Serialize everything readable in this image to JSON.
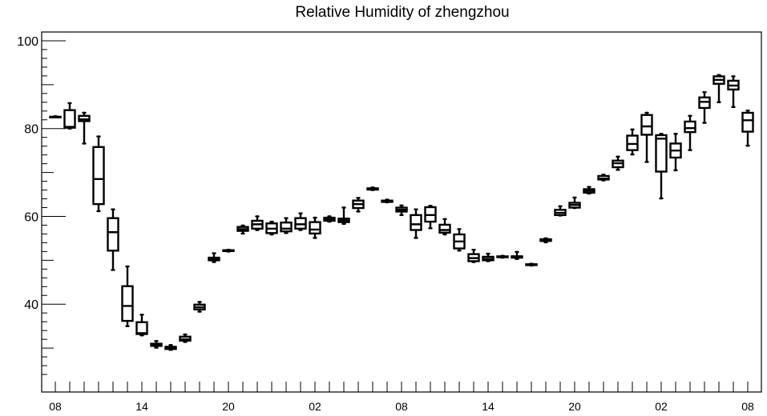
{
  "chart_data": {
    "type": "boxplot",
    "title": "Relative Humidity of zhengzhou",
    "xlabel": "",
    "ylabel": "",
    "ylim": [
      20,
      102
    ],
    "grid": false,
    "legend": "none",
    "colors": {
      "box": "#000000",
      "background": "#ffffff"
    },
    "x_tick_labels": [
      "08",
      "14",
      "20",
      "02",
      "08",
      "14",
      "20",
      "02",
      "08"
    ],
    "x_tick_label_hours": [
      0,
      6,
      12,
      18,
      24,
      30,
      36,
      42,
      48
    ],
    "y_tick_labels": [
      "40",
      "60",
      "80",
      "100"
    ],
    "y_ticks": [
      40,
      60,
      80,
      100
    ],
    "boxes": [
      {
        "hour": 0,
        "min": 82.6,
        "q1": 82.6,
        "median": 82.6,
        "q3": 82.7,
        "max": 82.8
      },
      {
        "hour": 1,
        "min": 80.0,
        "q1": 80.2,
        "median": 80.4,
        "q3": 84.2,
        "max": 85.8
      },
      {
        "hour": 2,
        "min": 76.6,
        "q1": 81.7,
        "median": 82.1,
        "q3": 82.9,
        "max": 83.6
      },
      {
        "hour": 3,
        "min": 61.2,
        "q1": 62.8,
        "median": 68.5,
        "q3": 75.8,
        "max": 78.2
      },
      {
        "hour": 4,
        "min": 47.8,
        "q1": 52.2,
        "median": 56.4,
        "q3": 59.6,
        "max": 61.6
      },
      {
        "hour": 5,
        "min": 35.0,
        "q1": 36.2,
        "median": 39.6,
        "q3": 44.1,
        "max": 48.6
      },
      {
        "hour": 6,
        "min": 32.9,
        "q1": 33.2,
        "median": 33.4,
        "q3": 35.9,
        "max": 37.6
      },
      {
        "hour": 7,
        "min": 30.1,
        "q1": 30.5,
        "median": 30.7,
        "q3": 31.0,
        "max": 31.6
      },
      {
        "hour": 8,
        "min": 29.6,
        "q1": 29.8,
        "median": 29.9,
        "q3": 30.3,
        "max": 30.7
      },
      {
        "hour": 9,
        "min": 31.4,
        "q1": 31.7,
        "median": 32.0,
        "q3": 32.6,
        "max": 33.1
      },
      {
        "hour": 10,
        "min": 38.3,
        "q1": 38.8,
        "median": 39.3,
        "q3": 39.9,
        "max": 40.5
      },
      {
        "hour": 11,
        "min": 49.6,
        "q1": 50.0,
        "median": 50.3,
        "q3": 50.6,
        "max": 51.6
      },
      {
        "hour": 12,
        "min": 52.0,
        "q1": 52.1,
        "median": 52.2,
        "q3": 52.3,
        "max": 52.4
      },
      {
        "hour": 13,
        "min": 56.1,
        "q1": 56.7,
        "median": 57.1,
        "q3": 57.6,
        "max": 57.9
      },
      {
        "hour": 14,
        "min": 56.9,
        "q1": 57.2,
        "median": 58.2,
        "q3": 59.0,
        "max": 60.0
      },
      {
        "hour": 15,
        "min": 55.9,
        "q1": 56.2,
        "median": 57.2,
        "q3": 58.4,
        "max": 58.8
      },
      {
        "hour": 16,
        "min": 56.2,
        "q1": 56.6,
        "median": 57.2,
        "q3": 58.6,
        "max": 59.6
      },
      {
        "hour": 17,
        "min": 56.9,
        "q1": 57.2,
        "median": 58.2,
        "q3": 59.6,
        "max": 60.7
      },
      {
        "hour": 18,
        "min": 55.1,
        "q1": 56.1,
        "median": 57.0,
        "q3": 58.7,
        "max": 59.7
      },
      {
        "hour": 19,
        "min": 58.8,
        "q1": 59.0,
        "median": 59.3,
        "q3": 59.7,
        "max": 60.0
      },
      {
        "hour": 20,
        "min": 58.3,
        "q1": 58.7,
        "median": 59.1,
        "q3": 59.5,
        "max": 62.0
      },
      {
        "hour": 21,
        "min": 61.1,
        "q1": 61.9,
        "median": 62.8,
        "q3": 63.6,
        "max": 64.2
      },
      {
        "hour": 22,
        "min": 66.0,
        "q1": 66.1,
        "median": 66.2,
        "q3": 66.4,
        "max": 66.6
      },
      {
        "hour": 23,
        "min": 63.2,
        "q1": 63.3,
        "median": 63.5,
        "q3": 63.6,
        "max": 63.8
      },
      {
        "hour": 24,
        "min": 60.3,
        "q1": 61.1,
        "median": 61.5,
        "q3": 62.0,
        "max": 62.5
      },
      {
        "hour": 25,
        "min": 55.1,
        "q1": 56.9,
        "median": 58.2,
        "q3": 60.3,
        "max": 61.6
      },
      {
        "hour": 26,
        "min": 57.3,
        "q1": 58.8,
        "median": 60.3,
        "q3": 62.1,
        "max": 62.4
      },
      {
        "hour": 27,
        "min": 55.9,
        "q1": 56.3,
        "median": 56.9,
        "q3": 58.1,
        "max": 59.4
      },
      {
        "hour": 28,
        "min": 52.2,
        "q1": 52.7,
        "median": 54.3,
        "q3": 55.9,
        "max": 57.1
      },
      {
        "hour": 29,
        "min": 49.6,
        "q1": 49.8,
        "median": 50.5,
        "q3": 51.4,
        "max": 52.4
      },
      {
        "hour": 30,
        "min": 49.8,
        "q1": 50.0,
        "median": 50.3,
        "q3": 50.8,
        "max": 51.5
      },
      {
        "hour": 31,
        "min": 50.6,
        "q1": 50.7,
        "median": 50.8,
        "q3": 50.9,
        "max": 51.0
      },
      {
        "hour": 32,
        "min": 50.3,
        "q1": 50.6,
        "median": 50.9,
        "q3": 50.9,
        "max": 51.9
      },
      {
        "hour": 33,
        "min": 48.8,
        "q1": 48.9,
        "median": 49.0,
        "q3": 49.1,
        "max": 49.2
      },
      {
        "hour": 34,
        "min": 54.1,
        "q1": 54.4,
        "median": 54.6,
        "q3": 54.8,
        "max": 55.0
      },
      {
        "hour": 35,
        "min": 60.2,
        "q1": 60.3,
        "median": 60.8,
        "q3": 61.5,
        "max": 62.3
      },
      {
        "hour": 36,
        "min": 61.9,
        "q1": 62.0,
        "median": 62.6,
        "q3": 63.1,
        "max": 64.3
      },
      {
        "hour": 37,
        "min": 65.2,
        "q1": 65.4,
        "median": 65.8,
        "q3": 66.2,
        "max": 66.7
      },
      {
        "hour": 38,
        "min": 68.2,
        "q1": 68.4,
        "median": 68.6,
        "q3": 69.2,
        "max": 69.5
      },
      {
        "hour": 39,
        "min": 70.6,
        "q1": 71.2,
        "median": 72.1,
        "q3": 72.7,
        "max": 73.6
      },
      {
        "hour": 40,
        "min": 74.1,
        "q1": 75.1,
        "median": 76.5,
        "q3": 78.4,
        "max": 79.8
      },
      {
        "hour": 41,
        "min": 72.4,
        "q1": 78.6,
        "median": 80.5,
        "q3": 83.1,
        "max": 83.6
      },
      {
        "hour": 42,
        "min": 64.1,
        "q1": 70.2,
        "median": 77.7,
        "q3": 78.5,
        "max": 78.8
      },
      {
        "hour": 43,
        "min": 70.5,
        "q1": 73.4,
        "median": 75.0,
        "q3": 76.6,
        "max": 78.8
      },
      {
        "hour": 44,
        "min": 75.1,
        "q1": 79.2,
        "median": 80.1,
        "q3": 81.6,
        "max": 82.9
      },
      {
        "hour": 45,
        "min": 81.3,
        "q1": 84.7,
        "median": 86.1,
        "q3": 87.1,
        "max": 88.3
      },
      {
        "hour": 46,
        "min": 86.0,
        "q1": 90.2,
        "median": 91.1,
        "q3": 91.9,
        "max": 92.2
      },
      {
        "hour": 47,
        "min": 84.9,
        "q1": 88.9,
        "median": 89.8,
        "q3": 90.9,
        "max": 91.9
      },
      {
        "hour": 48,
        "min": 76.1,
        "q1": 79.3,
        "median": 81.9,
        "q3": 83.6,
        "max": 84.1
      }
    ]
  }
}
